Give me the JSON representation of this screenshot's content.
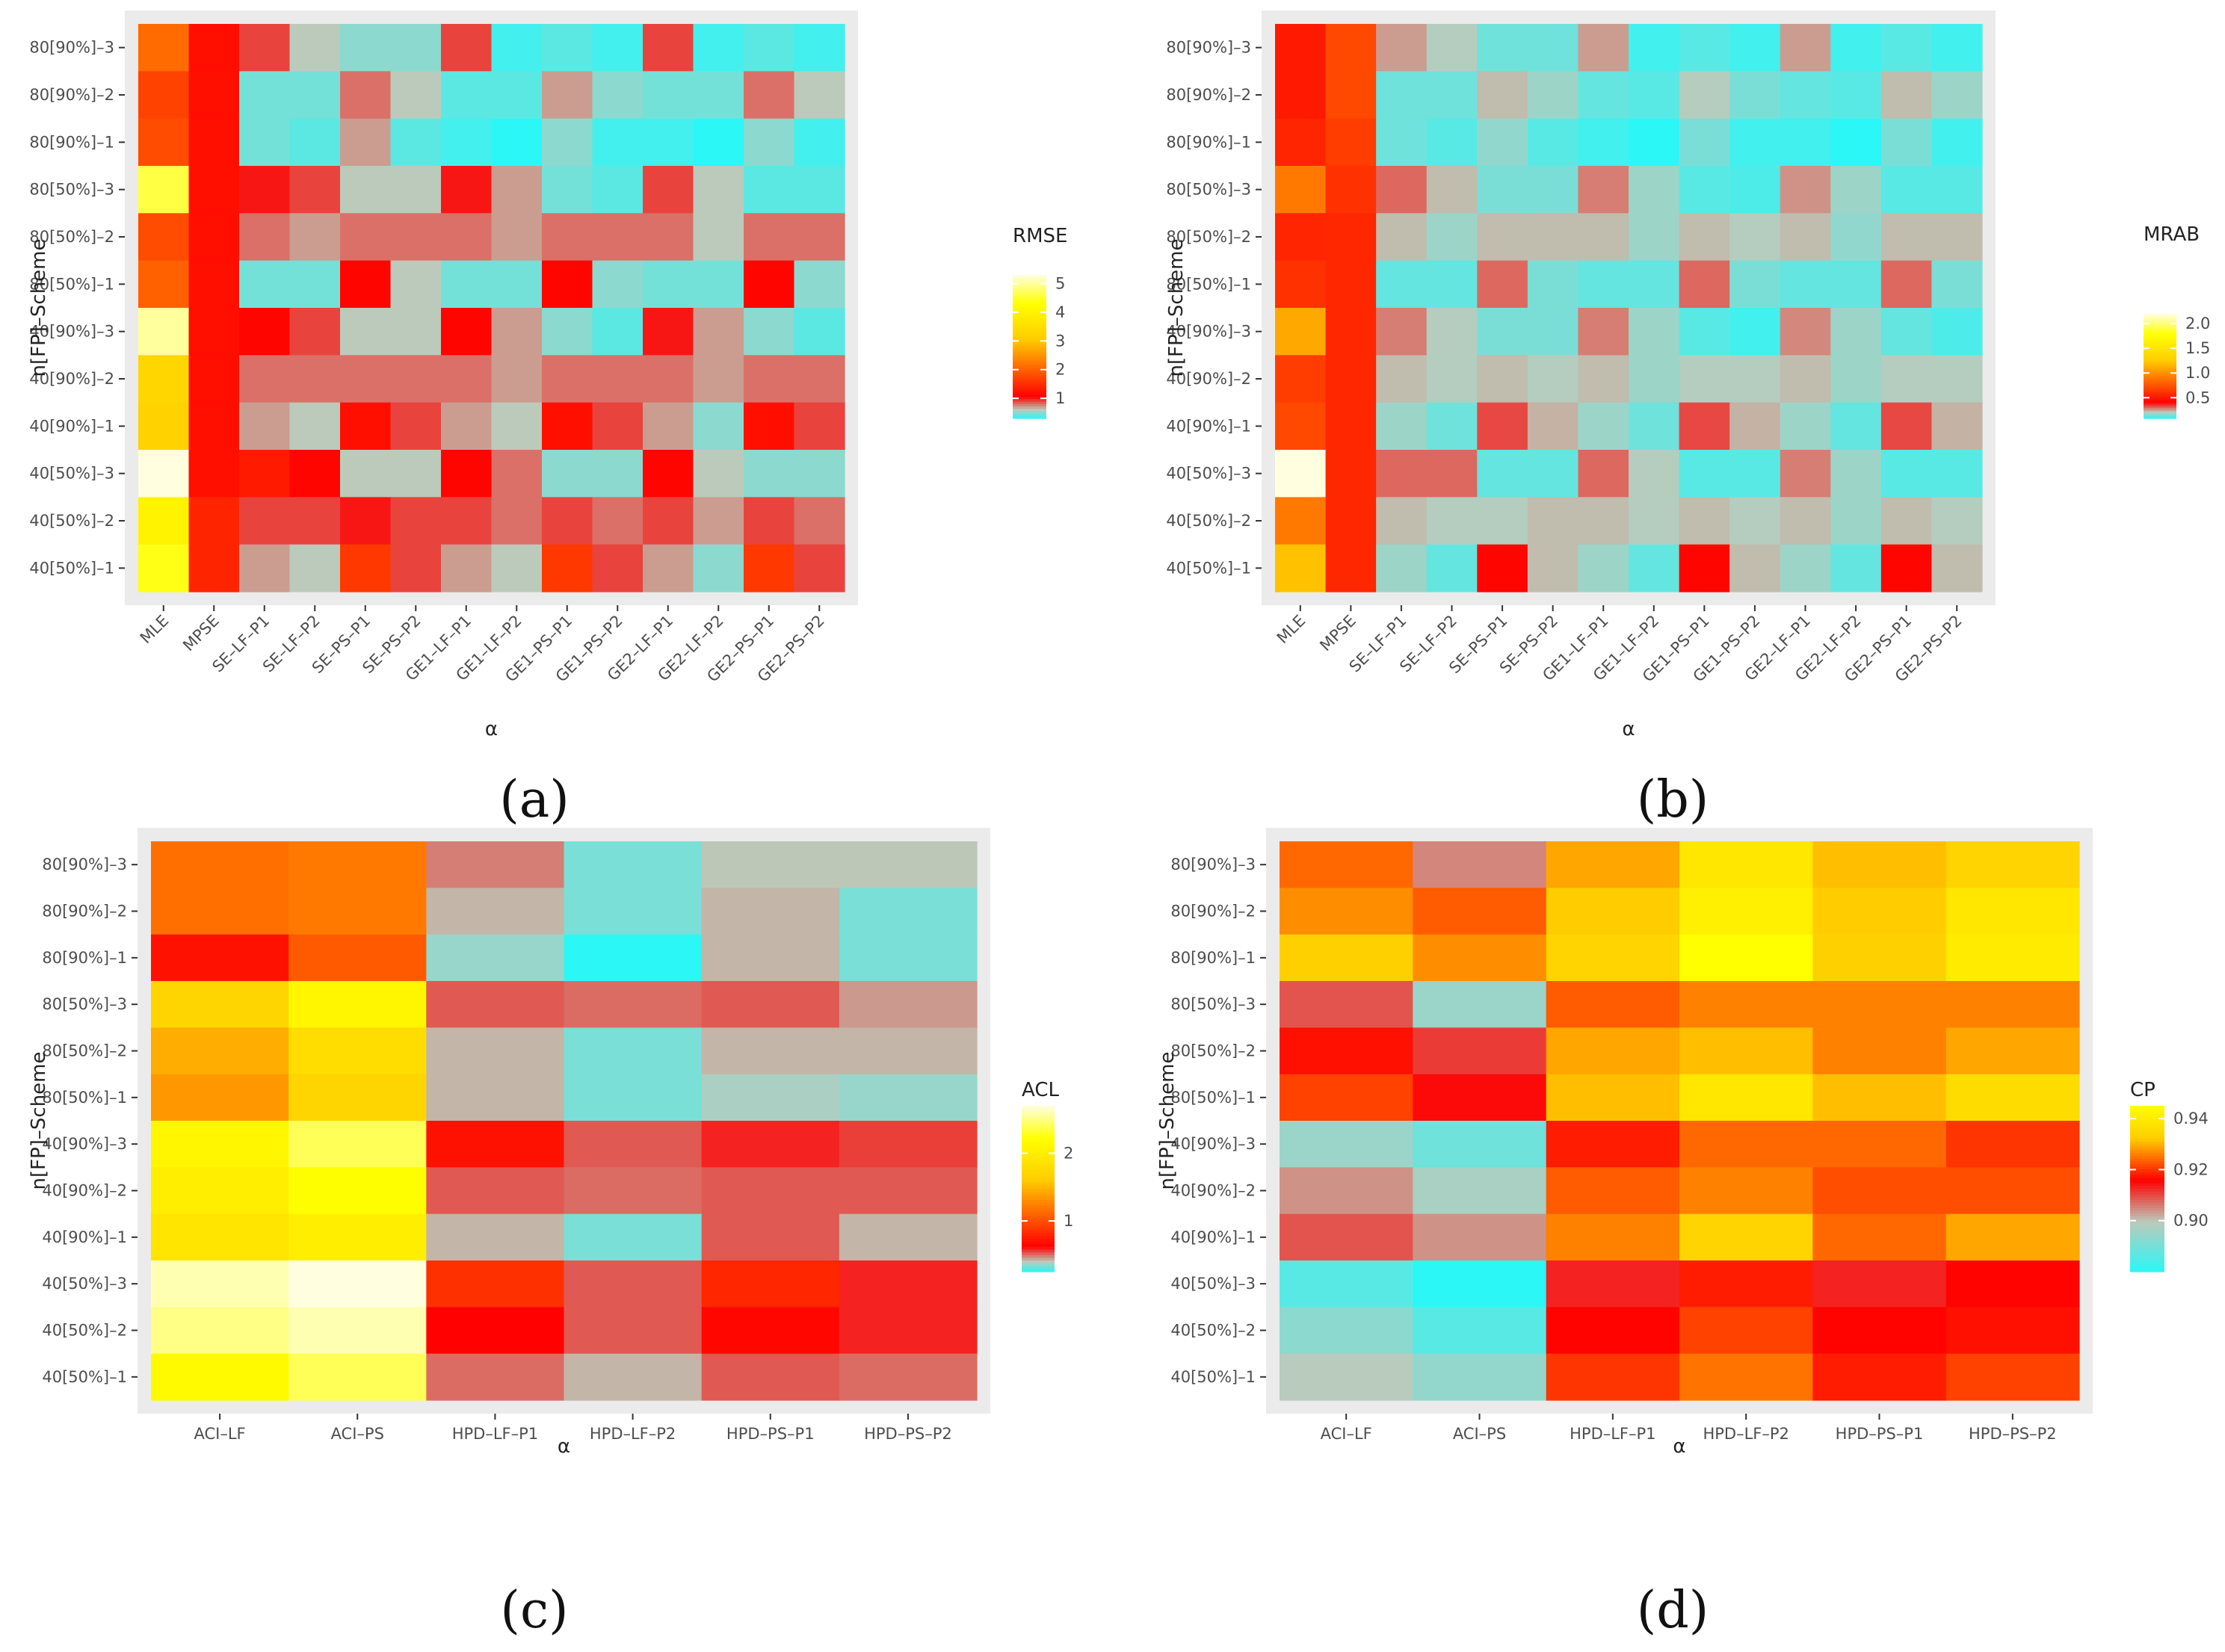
{
  "figure": {
    "panel_labels": [
      "(a)",
      "(b)",
      "(c)",
      "(d)"
    ],
    "label_font_parts": {
      "open": "(",
      "close": ")"
    }
  },
  "colors": {
    "panel_bg": "#ebebeb",
    "tick_mark": "#333333",
    "scale_low": "#2bf7f7",
    "scale_mid1": "#bccabb",
    "scale_mid2": "#ff0000",
    "scale_mid3": "#ffcc00",
    "scale_high": "#ffff00",
    "scale_top": "#ffffe0"
  },
  "chart_data": [
    {
      "type": "heatmap",
      "panel": "(a)",
      "title": "",
      "xlabel": "α",
      "ylabel": "n[FP]–Scheme",
      "legend_title": "RMSE",
      "legend_ticks": [
        1,
        2,
        3,
        4,
        5
      ],
      "value_range": [
        0.3,
        5.3
      ],
      "rows": [
        "80[90%]–3",
        "80[90%]–2",
        "80[90%]–1",
        "80[50%]–3",
        "80[50%]–2",
        "80[50%]–1",
        "40[90%]–3",
        "40[90%]–2",
        "40[90%]–1",
        "40[50%]–3",
        "40[50%]–2",
        "40[50%]–1"
      ],
      "columns": [
        "MLE",
        "MPSE",
        "SE–LF–P1",
        "SE–LF–P2",
        "SE–PS–P1",
        "SE–PS–P2",
        "GE1–LF–P1",
        "GE1–LF–P2",
        "GE1–PS–P1",
        "GE1–PS–P2",
        "GE2–LF–P1",
        "GE2–LF–P2",
        "GE2–PS–P1",
        "GE2–PS–P2"
      ],
      "values": [
        [
          2.1,
          1.2,
          0.9,
          0.6,
          0.5,
          0.5,
          0.9,
          0.35,
          0.4,
          0.35,
          0.9,
          0.35,
          0.4,
          0.35
        ],
        [
          1.7,
          1.2,
          0.45,
          0.45,
          0.8,
          0.6,
          0.4,
          0.4,
          0.7,
          0.5,
          0.45,
          0.45,
          0.8,
          0.6
        ],
        [
          1.8,
          1.2,
          0.45,
          0.4,
          0.7,
          0.4,
          0.35,
          0.3,
          0.5,
          0.35,
          0.35,
          0.3,
          0.5,
          0.35
        ],
        [
          4.6,
          1.2,
          1.0,
          0.9,
          0.6,
          0.6,
          1.0,
          0.7,
          0.45,
          0.4,
          0.9,
          0.6,
          0.4,
          0.4
        ],
        [
          1.8,
          1.2,
          0.8,
          0.7,
          0.8,
          0.8,
          0.8,
          0.7,
          0.8,
          0.8,
          0.8,
          0.6,
          0.8,
          0.8
        ],
        [
          2.0,
          1.2,
          0.45,
          0.45,
          1.1,
          0.6,
          0.45,
          0.45,
          1.1,
          0.5,
          0.45,
          0.45,
          1.1,
          0.5
        ],
        [
          5.0,
          1.2,
          1.1,
          0.9,
          0.6,
          0.6,
          1.1,
          0.7,
          0.5,
          0.4,
          1.0,
          0.7,
          0.5,
          0.4
        ],
        [
          3.3,
          1.2,
          0.8,
          0.8,
          0.8,
          0.8,
          0.8,
          0.7,
          0.8,
          0.8,
          0.8,
          0.7,
          0.8,
          0.8
        ],
        [
          3.2,
          1.2,
          0.7,
          0.6,
          1.2,
          0.9,
          0.7,
          0.6,
          1.2,
          0.9,
          0.7,
          0.5,
          1.2,
          0.9
        ],
        [
          5.3,
          1.2,
          1.3,
          1.1,
          0.6,
          0.6,
          1.1,
          0.8,
          0.5,
          0.5,
          1.1,
          0.6,
          0.5,
          0.5
        ],
        [
          4.0,
          1.4,
          0.9,
          0.9,
          1.0,
          0.9,
          0.9,
          0.8,
          0.9,
          0.8,
          0.9,
          0.7,
          0.9,
          0.8
        ],
        [
          4.4,
          1.4,
          0.7,
          0.6,
          1.6,
          0.9,
          0.7,
          0.6,
          1.6,
          0.9,
          0.7,
          0.5,
          1.6,
          0.9
        ]
      ]
    },
    {
      "type": "heatmap",
      "panel": "(b)",
      "title": "",
      "xlabel": "α",
      "ylabel": "n[FP]–Scheme",
      "legend_title": "MRAB",
      "legend_ticks": [
        0.5,
        1.0,
        1.5,
        2.0
      ],
      "legend_tick_labels": [
        "0.5",
        "1.0",
        "1.5",
        "2.0"
      ],
      "value_range": [
        0.08,
        2.2
      ],
      "rows": [
        "80[90%]–3",
        "80[90%]–2",
        "80[90%]–1",
        "80[50%]–3",
        "80[50%]–2",
        "80[50%]–1",
        "40[90%]–3",
        "40[90%]–2",
        "40[90%]–1",
        "40[50%]–3",
        "40[50%]–2",
        "40[50%]–1"
      ],
      "columns": [
        "MLE",
        "MPSE",
        "SE–LF–P1",
        "SE–LF–P2",
        "SE–PS–P1",
        "SE–PS–P2",
        "GE1–LF–P1",
        "GE1–LF–P2",
        "GE1–PS–P1",
        "GE1–PS–P2",
        "GE2–LF–P1",
        "GE2–LF–P2",
        "GE2–PS–P1",
        "GE2–PS–P2"
      ],
      "values": [
        [
          0.5,
          0.7,
          0.25,
          0.2,
          0.14,
          0.14,
          0.25,
          0.1,
          0.12,
          0.1,
          0.25,
          0.1,
          0.12,
          0.1
        ],
        [
          0.5,
          0.7,
          0.14,
          0.14,
          0.22,
          0.18,
          0.13,
          0.12,
          0.2,
          0.15,
          0.13,
          0.12,
          0.22,
          0.18
        ],
        [
          0.55,
          0.65,
          0.14,
          0.12,
          0.17,
          0.12,
          0.1,
          0.08,
          0.15,
          0.1,
          0.1,
          0.08,
          0.15,
          0.1
        ],
        [
          0.9,
          0.6,
          0.3,
          0.22,
          0.15,
          0.15,
          0.28,
          0.18,
          0.12,
          0.11,
          0.26,
          0.18,
          0.12,
          0.12
        ],
        [
          0.55,
          0.56,
          0.22,
          0.18,
          0.22,
          0.22,
          0.22,
          0.18,
          0.22,
          0.2,
          0.22,
          0.17,
          0.22,
          0.22
        ],
        [
          0.6,
          0.56,
          0.13,
          0.13,
          0.3,
          0.15,
          0.13,
          0.13,
          0.3,
          0.15,
          0.13,
          0.13,
          0.3,
          0.15
        ],
        [
          1.1,
          0.56,
          0.28,
          0.2,
          0.15,
          0.15,
          0.28,
          0.18,
          0.12,
          0.1,
          0.27,
          0.18,
          0.13,
          0.11
        ],
        [
          0.65,
          0.56,
          0.22,
          0.2,
          0.22,
          0.2,
          0.22,
          0.18,
          0.2,
          0.2,
          0.22,
          0.18,
          0.2,
          0.2
        ],
        [
          0.7,
          0.56,
          0.18,
          0.14,
          0.33,
          0.23,
          0.18,
          0.14,
          0.33,
          0.23,
          0.18,
          0.13,
          0.33,
          0.23
        ],
        [
          2.2,
          0.56,
          0.3,
          0.3,
          0.13,
          0.13,
          0.3,
          0.2,
          0.12,
          0.12,
          0.28,
          0.18,
          0.12,
          0.12
        ],
        [
          0.9,
          0.56,
          0.22,
          0.2,
          0.2,
          0.22,
          0.22,
          0.2,
          0.22,
          0.2,
          0.22,
          0.18,
          0.22,
          0.2
        ],
        [
          1.2,
          0.56,
          0.18,
          0.13,
          0.42,
          0.22,
          0.18,
          0.13,
          0.42,
          0.22,
          0.18,
          0.13,
          0.42,
          0.22
        ]
      ]
    },
    {
      "type": "heatmap",
      "panel": "(c)",
      "title": "",
      "xlabel": "α",
      "ylabel": "n[FP]–Scheme",
      "legend_title": "ACL",
      "legend_ticks": [
        1,
        2
      ],
      "value_range": [
        0.25,
        2.7
      ],
      "rows": [
        "80[90%]–3",
        "80[90%]–2",
        "80[90%]–1",
        "80[50%]–3",
        "80[50%]–2",
        "80[50%]–1",
        "40[90%]–3",
        "40[90%]–2",
        "40[90%]–1",
        "40[50%]–3",
        "40[50%]–2",
        "40[50%]–1"
      ],
      "columns": [
        "ACI–LF",
        "ACI–PS",
        "HPD–LF–P1",
        "HPD–LF–P2",
        "HPD–PS–P1",
        "HPD–PS–P2"
      ],
      "values": [
        [
          1.15,
          1.2,
          0.48,
          0.33,
          0.4,
          0.4
        ],
        [
          1.15,
          1.2,
          0.42,
          0.33,
          0.42,
          0.33
        ],
        [
          0.7,
          1.05,
          0.36,
          0.25,
          0.42,
          0.33
        ],
        [
          1.7,
          2.1,
          0.52,
          0.5,
          0.52,
          0.45
        ],
        [
          1.45,
          1.8,
          0.42,
          0.33,
          0.42,
          0.42
        ],
        [
          1.35,
          1.7,
          0.42,
          0.33,
          0.38,
          0.36
        ],
        [
          2.1,
          2.4,
          0.7,
          0.52,
          0.58,
          0.55
        ],
        [
          2.0,
          2.2,
          0.52,
          0.5,
          0.52,
          0.52
        ],
        [
          1.9,
          2.0,
          0.42,
          0.33,
          0.52,
          0.42
        ],
        [
          2.6,
          2.7,
          0.85,
          0.52,
          0.8,
          0.58
        ],
        [
          2.5,
          2.6,
          0.62,
          0.52,
          0.65,
          0.58
        ],
        [
          2.15,
          2.4,
          0.5,
          0.42,
          0.52,
          0.5
        ]
      ]
    },
    {
      "type": "heatmap",
      "panel": "(d)",
      "title": "",
      "xlabel": "α",
      "ylabel": "n[FP]–Scheme",
      "legend_title": "CP",
      "legend_ticks": [
        0.9,
        0.92,
        0.94
      ],
      "legend_tick_labels": [
        "0.90",
        "0.92",
        "0.94"
      ],
      "value_range": [
        0.88,
        0.945
      ],
      "rows": [
        "80[90%]–3",
        "80[90%]–2",
        "80[90%]–1",
        "80[50%]–3",
        "80[50%]–2",
        "80[50%]–1",
        "40[90%]–3",
        "40[90%]–2",
        "40[90%]–1",
        "40[50%]–3",
        "40[50%]–2",
        "40[50%]–1"
      ],
      "columns": [
        "ACI–LF",
        "ACI–PS",
        "HPD–LF–P1",
        "HPD–LF–P2",
        "HPD–PS–P1",
        "HPD–PS–P2"
      ],
      "values": [
        [
          0.924,
          0.905,
          0.929,
          0.939,
          0.931,
          0.934
        ],
        [
          0.927,
          0.923,
          0.932,
          0.941,
          0.932,
          0.939
        ],
        [
          0.933,
          0.927,
          0.934,
          0.945,
          0.933,
          0.94
        ],
        [
          0.909,
          0.895,
          0.923,
          0.926,
          0.926,
          0.926
        ],
        [
          0.917,
          0.911,
          0.929,
          0.931,
          0.926,
          0.929
        ],
        [
          0.921,
          0.915,
          0.931,
          0.939,
          0.931,
          0.936
        ],
        [
          0.895,
          0.889,
          0.918,
          0.924,
          0.924,
          0.92
        ],
        [
          0.904,
          0.897,
          0.923,
          0.926,
          0.922,
          0.922
        ],
        [
          0.909,
          0.904,
          0.926,
          0.934,
          0.924,
          0.929
        ],
        [
          0.886,
          0.88,
          0.913,
          0.918,
          0.913,
          0.916
        ],
        [
          0.893,
          0.886,
          0.916,
          0.921,
          0.916,
          0.917
        ],
        [
          0.899,
          0.894,
          0.92,
          0.925,
          0.918,
          0.921
        ]
      ]
    }
  ]
}
